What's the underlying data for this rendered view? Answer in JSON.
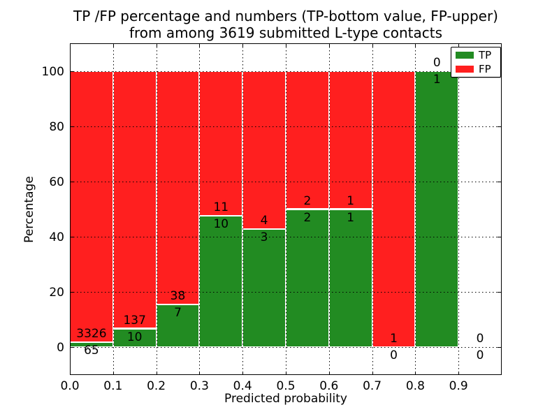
{
  "title": {
    "line1": "TP /FP percentage and numbers (TP-bottom value, FP-upper)",
    "line2": "from among 3619 submitted L-type contacts"
  },
  "axes": {
    "xlabel": "Predicted probability",
    "ylabel": "Percentage",
    "xticks": [
      "0.0",
      "0.1",
      "0.2",
      "0.3",
      "0.4",
      "0.5",
      "0.6",
      "0.7",
      "0.8",
      "0.9"
    ],
    "yticks": [
      "0",
      "20",
      "40",
      "60",
      "80",
      "100"
    ]
  },
  "legend": {
    "items": [
      {
        "label": "TP",
        "color": "#228b22"
      },
      {
        "label": "FP",
        "color": "#ff1f1f"
      }
    ]
  },
  "chart_data": {
    "type": "bar",
    "stacked": true,
    "title": "TP /FP percentage and numbers (TP-bottom value, FP-upper) from among 3619 submitted L-type contacts",
    "xlabel": "Predicted probability",
    "ylabel": "Percentage",
    "xlim": [
      0,
      1.0
    ],
    "ylim": [
      -10,
      110
    ],
    "grid": true,
    "legend_position": "upper right",
    "total_submitted": 3619,
    "series": [
      {
        "name": "TP",
        "color": "#228b22"
      },
      {
        "name": "FP",
        "color": "#ff1f1f"
      }
    ],
    "bins": [
      {
        "range": [
          0.0,
          0.1
        ],
        "tp_count": "65",
        "fp_count": "3326",
        "tp_pct": 1.92,
        "fp_pct": 98.08
      },
      {
        "range": [
          0.1,
          0.2
        ],
        "tp_count": "10",
        "fp_count": "137",
        "tp_pct": 6.8,
        "fp_pct": 93.2
      },
      {
        "range": [
          0.2,
          0.3
        ],
        "tp_count": "7",
        "fp_count": "38",
        "tp_pct": 15.56,
        "fp_pct": 84.44
      },
      {
        "range": [
          0.3,
          0.4
        ],
        "tp_count": "10",
        "fp_count": "11",
        "tp_pct": 47.62,
        "fp_pct": 52.38
      },
      {
        "range": [
          0.4,
          0.5
        ],
        "tp_count": "3",
        "fp_count": "4",
        "tp_pct": 42.86,
        "fp_pct": 57.14
      },
      {
        "range": [
          0.5,
          0.6
        ],
        "tp_count": "2",
        "fp_count": "2",
        "tp_pct": 50,
        "fp_pct": 50
      },
      {
        "range": [
          0.6,
          0.7
        ],
        "tp_count": "1",
        "fp_count": "1",
        "tp_pct": 50,
        "fp_pct": 50
      },
      {
        "range": [
          0.7,
          0.8
        ],
        "tp_count": "0",
        "fp_count": "1",
        "tp_pct": 0,
        "fp_pct": 100
      },
      {
        "range": [
          0.8,
          0.9
        ],
        "tp_count": "1",
        "fp_count": "0",
        "tp_pct": 100,
        "fp_pct": 0
      },
      {
        "range": [
          0.9,
          1.0
        ],
        "tp_count": "0",
        "fp_count": "0",
        "tp_pct": 0,
        "fp_pct": 0
      }
    ]
  }
}
